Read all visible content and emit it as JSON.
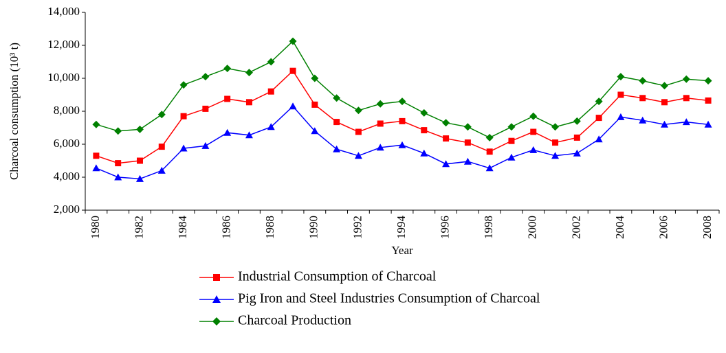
{
  "chart_data": {
    "type": "line",
    "y_label": "Charcoal consumption (10³ t)",
    "x_label": "Year",
    "categories": [
      "1980",
      null,
      "1982",
      null,
      "1984",
      null,
      "1986",
      null,
      "1988",
      null,
      "1990",
      null,
      "1992",
      null,
      "1994",
      null,
      "1996",
      null,
      "1998",
      null,
      "2000",
      null,
      "2002",
      null,
      "2004",
      null,
      "2006",
      null,
      "2008"
    ],
    "series": [
      {
        "name": "Industrial Consumption of Charcoal",
        "color": "#ff0000",
        "marker": "square",
        "values": [
          5300,
          4850,
          5000,
          5850,
          7700,
          8150,
          8750,
          8550,
          9200,
          10450,
          8400,
          7350,
          6750,
          7250,
          7400,
          6850,
          6350,
          6100,
          5550,
          6200,
          6750,
          6100,
          6400,
          7600,
          9000,
          8800,
          8550,
          8800,
          8650
        ]
      },
      {
        "name": "Pig Iron and Steel Industries Consumption of Charcoal",
        "color": "#0000ff",
        "marker": "triangle",
        "values": [
          4550,
          4000,
          3900,
          4400,
          5750,
          5900,
          6700,
          6550,
          7050,
          8300,
          6800,
          5700,
          5300,
          5800,
          5950,
          5450,
          4800,
          4950,
          4550,
          5200,
          5650,
          5300,
          5450,
          6300,
          7650,
          7450,
          7200,
          7350,
          7200
        ]
      },
      {
        "name": "Charcoal Production",
        "color": "#008000",
        "marker": "diamond",
        "values": [
          7200,
          6800,
          6900,
          7800,
          9600,
          10100,
          10600,
          10350,
          11000,
          12250,
          10000,
          8800,
          8050,
          8450,
          8600,
          7900,
          7300,
          7050,
          6400,
          7050,
          7700,
          7050,
          7400,
          8600,
          10100,
          9850,
          9550,
          9950,
          9850
        ]
      }
    ],
    "ylim": [
      2000,
      14000
    ],
    "yticks": [
      {
        "value": 2000,
        "label": "2,000"
      },
      {
        "value": 4000,
        "label": "4,000"
      },
      {
        "value": 6000,
        "label": "6,000"
      },
      {
        "value": 8000,
        "label": "8,000"
      },
      {
        "value": 10000,
        "label": "10,000"
      },
      {
        "value": 12000,
        "label": "12,000"
      },
      {
        "value": 14000,
        "label": "14,000"
      }
    ],
    "grid": false
  }
}
